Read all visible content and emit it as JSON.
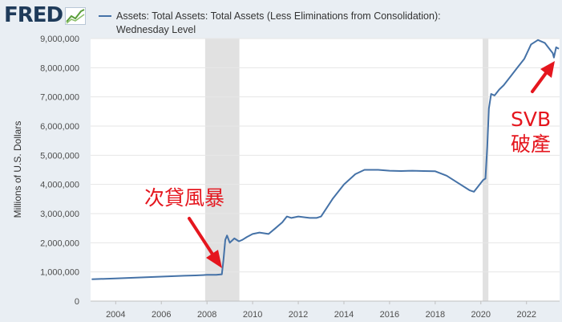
{
  "header": {
    "logo_text": "FRED",
    "legend_label": "Assets: Total Assets: Total Assets (Less Eliminations from Consolidation): Wednesday Level",
    "series_color": "#4572a7"
  },
  "annotations": {
    "subprime": "次貸風暴",
    "svb_line1": "SVB",
    "svb_line2": "破產",
    "color": "#e5161e"
  },
  "chart_data": {
    "type": "line",
    "title": "Assets: Total Assets: Total Assets (Less Eliminations from Consolidation): Wednesday Level",
    "xlabel": "",
    "ylabel": "Millions of U.S. Dollars",
    "xlim": [
      2002.9,
      2023.45
    ],
    "ylim": [
      0,
      9000000
    ],
    "x_ticks": [
      2004,
      2006,
      2008,
      2010,
      2012,
      2014,
      2016,
      2018,
      2020,
      2022
    ],
    "y_ticks": [
      0,
      1000000,
      2000000,
      3000000,
      4000000,
      5000000,
      6000000,
      7000000,
      8000000,
      9000000
    ],
    "y_tick_labels": [
      "0",
      "1,000,000",
      "2,000,000",
      "3,000,000",
      "4,000,000",
      "5,000,000",
      "6,000,000",
      "7,000,000",
      "8,000,000",
      "9,000,000"
    ],
    "recessions": [
      [
        2007.92,
        2009.42
      ],
      [
        2020.08,
        2020.33
      ]
    ],
    "grid": true,
    "series": [
      {
        "name": "Total Assets",
        "x": [
          2002.95,
          2004.0,
          2005.0,
          2006.0,
          2007.0,
          2007.5,
          2008.0,
          2008.4,
          2008.65,
          2008.72,
          2008.8,
          2008.88,
          2009.0,
          2009.2,
          2009.4,
          2009.55,
          2009.75,
          2010.0,
          2010.3,
          2010.7,
          2011.0,
          2011.3,
          2011.5,
          2011.7,
          2012.0,
          2012.5,
          2012.8,
          2013.0,
          2013.5,
          2014.0,
          2014.5,
          2014.9,
          2015.5,
          2016.0,
          2016.5,
          2017.0,
          2017.5,
          2018.0,
          2018.5,
          2019.0,
          2019.5,
          2019.7,
          2019.9,
          2020.1,
          2020.2,
          2020.28,
          2020.35,
          2020.45,
          2020.6,
          2020.8,
          2021.0,
          2021.3,
          2021.6,
          2021.9,
          2022.2,
          2022.5,
          2022.8,
          2023.0,
          2023.15,
          2023.2,
          2023.3,
          2023.42
        ],
        "values": [
          750000,
          780000,
          810000,
          840000,
          870000,
          880000,
          900000,
          900000,
          920000,
          1400000,
          2100000,
          2250000,
          2000000,
          2150000,
          2050000,
          2100000,
          2200000,
          2300000,
          2350000,
          2300000,
          2500000,
          2700000,
          2900000,
          2850000,
          2900000,
          2850000,
          2850000,
          2900000,
          3500000,
          4000000,
          4350000,
          4500000,
          4500000,
          4470000,
          4460000,
          4470000,
          4460000,
          4450000,
          4300000,
          4050000,
          3800000,
          3750000,
          3950000,
          4150000,
          4200000,
          5300000,
          6600000,
          7100000,
          7050000,
          7250000,
          7400000,
          7700000,
          8000000,
          8300000,
          8800000,
          8950000,
          8850000,
          8650000,
          8500000,
          8350000,
          8700000,
          8650000
        ]
      }
    ]
  }
}
